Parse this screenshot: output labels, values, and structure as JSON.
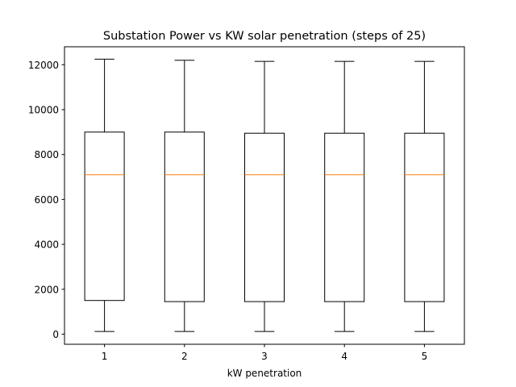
{
  "chart_data": {
    "type": "box",
    "title": "Substation Power vs KW solar penetration (steps of 25)",
    "xlabel": "kW penetration",
    "ylabel": "",
    "categories": [
      "1",
      "2",
      "3",
      "4",
      "5"
    ],
    "boxes": [
      {
        "category": "1",
        "whisker_low": 120,
        "q1": 1500,
        "median": 7100,
        "q3": 9000,
        "whisker_high": 12250
      },
      {
        "category": "2",
        "whisker_low": 120,
        "q1": 1450,
        "median": 7100,
        "q3": 9000,
        "whisker_high": 12200
      },
      {
        "category": "3",
        "whisker_low": 120,
        "q1": 1450,
        "median": 7100,
        "q3": 8950,
        "whisker_high": 12150
      },
      {
        "category": "4",
        "whisker_low": 120,
        "q1": 1450,
        "median": 7100,
        "q3": 8950,
        "whisker_high": 12150
      },
      {
        "category": "5",
        "whisker_low": 120,
        "q1": 1450,
        "median": 7100,
        "q3": 8950,
        "whisker_high": 12150
      }
    ],
    "ylim": [
      -450,
      12800
    ],
    "yticks": [
      0,
      2000,
      4000,
      6000,
      8000,
      10000,
      12000
    ],
    "grid": false,
    "colors": {
      "box": "#000000",
      "median": "#ff7f0e",
      "axis": "#000000"
    }
  }
}
